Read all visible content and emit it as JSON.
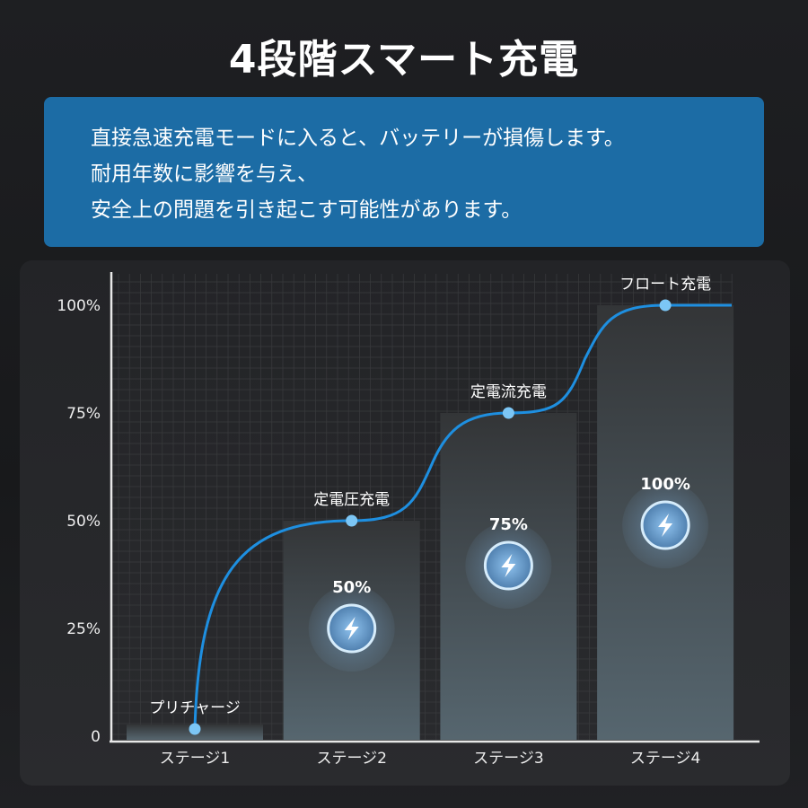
{
  "title": "4段階スマート充電",
  "note": {
    "lines": [
      "直接急速充電モードに入ると、バッテリーが損傷します。",
      "耐用年数に影響を与え、",
      "安全上の問題を引き起こす可能性があります。"
    ]
  },
  "colors": {
    "accent": "#1e8fe0",
    "note_bg": "#1c6ca5",
    "point": "#7cc6f5"
  },
  "chart_data": {
    "type": "bar",
    "categories": [
      "ステージ1",
      "ステージ2",
      "ステージ3",
      "ステージ4"
    ],
    "values": [
      2,
      50,
      75,
      100
    ],
    "bar_labels": [
      "",
      "50%",
      "75%",
      "100%"
    ],
    "point_labels": [
      "プリチャージ",
      "定電圧充電",
      "定電流充電",
      "フロート充電"
    ],
    "line_series": [
      2,
      50,
      75,
      100
    ],
    "yticks": [
      "0",
      "25%",
      "50%",
      "75%",
      "100%"
    ],
    "ylim": [
      0,
      100
    ],
    "grid": true,
    "icon": "lightning-bolt-icon"
  }
}
